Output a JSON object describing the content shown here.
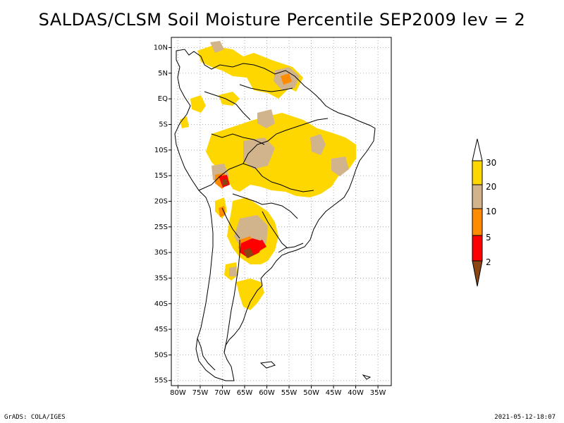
{
  "map": {
    "title": "SALDAS/CLSM Soil Moisture Percentile SEP2009 lev = 2",
    "lat_labels": [
      "10N",
      "5N",
      "EQ",
      "5S",
      "10S",
      "15S",
      "20S",
      "25S",
      "30S",
      "35S",
      "40S",
      "45S",
      "50S",
      "55S"
    ],
    "lon_labels": [
      "80W",
      "75W",
      "70W",
      "65W",
      "60W",
      "55W",
      "50W",
      "45W",
      "40W",
      "35W"
    ],
    "lat_values": [
      10,
      5,
      0,
      -5,
      -10,
      -15,
      -20,
      -25,
      -30,
      -35,
      -40,
      -45,
      -50,
      -55
    ],
    "lon_values": [
      -80,
      -75,
      -70,
      -65,
      -60,
      -55,
      -50,
      -45,
      -40,
      -35
    ],
    "extent": {
      "lon_min": -81.5,
      "lon_max": -32,
      "lat_min": -56,
      "lat_max": 12
    },
    "footer_left": "GrADS: COLA/IGES",
    "footer_right": "2021-05-12-18:07"
  },
  "legend": {
    "labels": [
      "30",
      "20",
      "10",
      "5",
      "2"
    ],
    "bins": [
      {
        "range": "<2",
        "color": "#8b4513"
      },
      {
        "range": "2-5",
        "color": "#ff0000"
      },
      {
        "range": "5-10",
        "color": "#ff8c00"
      },
      {
        "range": "10-20",
        "color": "#d2b48c"
      },
      {
        "range": "20-30",
        "color": "#ffd700"
      },
      {
        "range": ">30",
        "color": "#ffffff"
      }
    ]
  },
  "colors": {
    "brown": "#8b4513",
    "red": "#ff0000",
    "orange": "#ff8c00",
    "tan": "#d2b48c",
    "yellow": "#ffd700",
    "white": "#ffffff"
  }
}
